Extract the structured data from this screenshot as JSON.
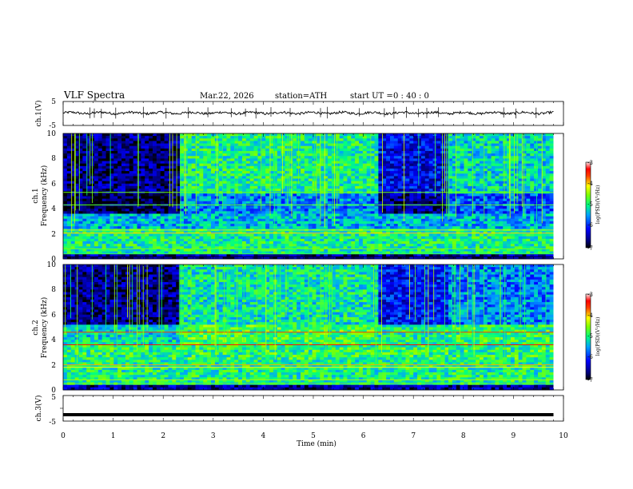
{
  "header": {
    "title": "VLF  Spectra",
    "date": "Mar.22, 2026",
    "station": "station=ATH",
    "start_label": "start  UT  =",
    "start_time": "0 : 40 : 0"
  },
  "chart_data": [
    {
      "type": "line",
      "panel": "ch1-waveform",
      "ylabel": "ch.1(V)",
      "xlim": [
        0,
        10
      ],
      "ylim": [
        -5,
        5
      ],
      "yticks": [
        "5",
        "-5"
      ],
      "trace_level": 0.2,
      "trace_amplitude": 0.5
    },
    {
      "type": "heatmap",
      "panel": "ch1-spectrogram",
      "ylabel": [
        "ch.1",
        "Frequency (kHz)"
      ],
      "xlim": [
        0,
        10
      ],
      "ylim": [
        0,
        10
      ],
      "yticks": [
        "0",
        "2",
        "4",
        "6",
        "8",
        "10"
      ],
      "colorbar": {
        "label": "log(PSD)(V²/Hz)",
        "ticks": [
          "-3",
          "-4",
          "-5",
          "-6",
          "-7"
        ],
        "range": [
          -7,
          -3
        ]
      },
      "segments_min": [
        {
          "t0": 0,
          "t1": 2.3,
          "hf_level": -6.6,
          "band_4_5_level": -6.8
        },
        {
          "t0": 2.3,
          "t1": 6.3,
          "hf_level": -5.0,
          "band_4_5_level": -5.6
        },
        {
          "t0": 6.3,
          "t1": 7.7,
          "hf_level": -6.2,
          "band_4_5_level": -6.6
        },
        {
          "t0": 7.7,
          "t1": 9.8,
          "hf_level": -5.2,
          "band_4_5_level": -5.8
        }
      ]
    },
    {
      "type": "heatmap",
      "panel": "ch2-spectrogram",
      "ylabel": [
        "ch.2",
        "Frequency (kHz)"
      ],
      "xlim": [
        0,
        10
      ],
      "ylim": [
        0,
        10
      ],
      "yticks": [
        "0",
        "2",
        "4",
        "6",
        "8",
        "10"
      ],
      "colorbar": {
        "label": "log(PSD)(V²/Hz)",
        "ticks": [
          "-3",
          "-4",
          "-5",
          "-6",
          "-7"
        ],
        "range": [
          -7,
          -3
        ]
      },
      "segments_min": [
        {
          "t0": 0,
          "t1": 2.3,
          "hf_level": -6.6,
          "band_4_5_level": -5.2
        },
        {
          "t0": 2.3,
          "t1": 6.3,
          "hf_level": -5.1,
          "band_4_5_level": -4.8
        },
        {
          "t0": 6.3,
          "t1": 7.7,
          "hf_level": -6.1,
          "band_4_5_level": -5.0
        },
        {
          "t0": 7.7,
          "t1": 9.8,
          "hf_level": -5.6,
          "band_4_5_level": -4.9
        }
      ]
    },
    {
      "type": "line",
      "panel": "ch3-waveform",
      "ylabel": "ch.3(V)",
      "xlim": [
        0,
        10
      ],
      "ylim": [
        -5,
        5
      ],
      "yticks": [
        "5",
        "0",
        "-5"
      ],
      "trace_level": -2.5
    }
  ],
  "x_axis": {
    "label": "Time  (min)",
    "ticks": [
      "0",
      "1",
      "2",
      "3",
      "4",
      "5",
      "6",
      "7",
      "8",
      "9",
      "10"
    ],
    "data_end": 9.8
  }
}
